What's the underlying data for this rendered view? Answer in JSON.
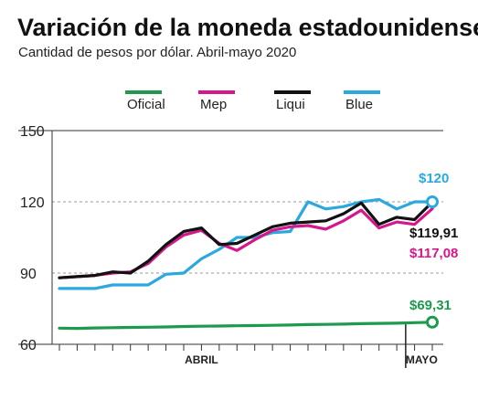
{
  "chart_data": {
    "type": "line",
    "title": "Variación de la moneda estadounidense",
    "subtitle": "Cantidad de pesos por dólar. Abril-mayo 2020",
    "xlabel": "",
    "ylabel": "",
    "ylim": [
      60,
      150
    ],
    "y_ticks": [
      {
        "value": 60,
        "label": "60"
      },
      {
        "value": 90,
        "label": "90"
      },
      {
        "value": 120,
        "label": "120"
      },
      {
        "value": 150,
        "label": "150"
      }
    ],
    "x_month_labels": [
      {
        "label": "ABRIL",
        "x": 8
      },
      {
        "label": "MAYO",
        "x": 20.4
      }
    ],
    "month_divider_x": 19,
    "grid": "horizontal dashed",
    "legend_position": "top",
    "x": [
      0,
      1,
      2,
      3,
      4,
      5,
      6,
      7,
      8,
      9,
      10,
      11,
      12,
      13,
      14,
      15,
      16,
      17,
      18,
      19,
      20,
      21
    ],
    "series": [
      {
        "name": "Oficial",
        "color": "#1e9a4f",
        "values": [
          66.8,
          66.7,
          66.9,
          67.0,
          67.1,
          67.2,
          67.3,
          67.5,
          67.6,
          67.7,
          67.8,
          67.9,
          68.0,
          68.1,
          68.3,
          68.4,
          68.5,
          68.7,
          68.8,
          68.9,
          69.1,
          69.31
        ],
        "end_label": "$69,31"
      },
      {
        "name": "Mep",
        "color": "#d6178c",
        "values": [
          88.0,
          88.5,
          89.0,
          90.0,
          90.5,
          94.0,
          101.0,
          106.0,
          108.0,
          102.5,
          99.5,
          104.0,
          108.0,
          109.5,
          110.0,
          108.5,
          112.0,
          116.5,
          109.0,
          111.5,
          110.5,
          117.08
        ],
        "end_label": "$117,08"
      },
      {
        "name": "Liqui",
        "color": "#111111",
        "values": [
          88.0,
          88.5,
          89.0,
          90.5,
          90.0,
          95.0,
          102.0,
          107.5,
          109.0,
          102.0,
          102.5,
          106.0,
          109.5,
          111.0,
          111.5,
          112.0,
          115.0,
          119.5,
          110.5,
          113.5,
          112.5,
          119.91
        ],
        "end_label": "$119,91"
      },
      {
        "name": "Blue",
        "color": "#2ba8de",
        "values": [
          83.5,
          83.5,
          83.5,
          85.0,
          85.0,
          85.0,
          89.5,
          90.0,
          96.0,
          100.0,
          105.0,
          105.0,
          107.0,
          107.5,
          120.0,
          117.0,
          118.0,
          120.0,
          121.0,
          117.0,
          120.0,
          120.0
        ],
        "end_label": "$120"
      }
    ]
  }
}
